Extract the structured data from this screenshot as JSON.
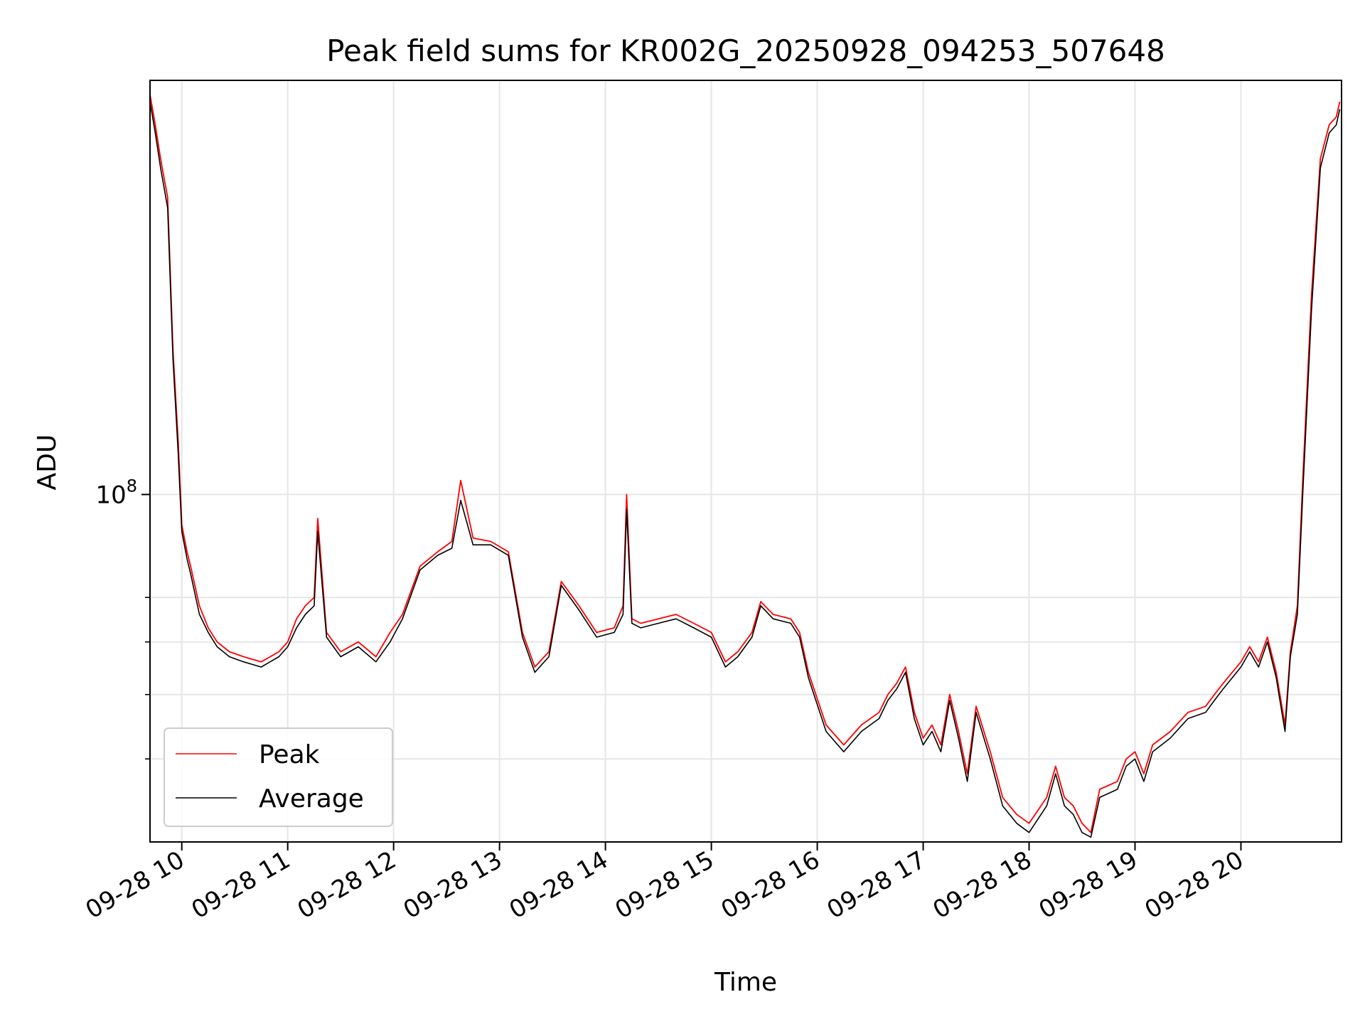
{
  "chart_data": {
    "type": "line",
    "title": "Peak field sums for KR002G_20250928_094253_507648",
    "xlabel": "Time",
    "ylabel": "ADU",
    "yscale": "log",
    "xlim": [
      "2025-09-28 09:42",
      "2025-09-28 20:57"
    ],
    "ylim": [
      30000000,
      420000000
    ],
    "x_ticks": [
      "09-28 10",
      "09-28 11",
      "09-28 12",
      "09-28 13",
      "09-28 14",
      "09-28 15",
      "09-28 16",
      "09-28 17",
      "09-28 18",
      "09-28 19",
      "09-28 20"
    ],
    "y_major_ticks": [
      {
        "value": 100000000,
        "label": "10",
        "exponent": "8"
      }
    ],
    "y_minor_ticks": [
      40000000,
      50000000,
      60000000,
      70000000
    ],
    "grid": true,
    "legend_position": "lower-left",
    "colors": {
      "peak": "#ff0000",
      "average": "#000000",
      "grid": "#e6e6e6"
    },
    "series": [
      {
        "name": "Peak",
        "color": "#ff0000",
        "x": [
          "2025-09-28 09:42",
          "2025-09-28 09:45",
          "2025-09-28 09:48",
          "2025-09-28 09:52",
          "2025-09-28 09:55",
          "2025-09-28 09:58",
          "2025-09-28 10:00",
          "2025-09-28 10:03",
          "2025-09-28 10:05",
          "2025-09-28 10:10",
          "2025-09-28 10:15",
          "2025-09-28 10:20",
          "2025-09-28 10:27",
          "2025-09-28 10:35",
          "2025-09-28 10:45",
          "2025-09-28 10:55",
          "2025-09-28 11:00",
          "2025-09-28 11:05",
          "2025-09-28 11:10",
          "2025-09-28 11:15",
          "2025-09-28 11:17",
          "2025-09-28 11:22",
          "2025-09-28 11:30",
          "2025-09-28 11:40",
          "2025-09-28 11:50",
          "2025-09-28 11:58",
          "2025-09-28 12:05",
          "2025-09-28 12:15",
          "2025-09-28 12:25",
          "2025-09-28 12:33",
          "2025-09-28 12:38",
          "2025-09-28 12:45",
          "2025-09-28 12:55",
          "2025-09-28 13:05",
          "2025-09-28 13:13",
          "2025-09-28 13:20",
          "2025-09-28 13:28",
          "2025-09-28 13:35",
          "2025-09-28 13:45",
          "2025-09-28 13:55",
          "2025-09-28 14:05",
          "2025-09-28 14:10",
          "2025-09-28 14:12",
          "2025-09-28 14:15",
          "2025-09-28 14:20",
          "2025-09-28 14:30",
          "2025-09-28 14:40",
          "2025-09-28 14:50",
          "2025-09-28 15:00",
          "2025-09-28 15:08",
          "2025-09-28 15:15",
          "2025-09-28 15:23",
          "2025-09-28 15:28",
          "2025-09-28 15:35",
          "2025-09-28 15:45",
          "2025-09-28 15:50",
          "2025-09-28 15:55",
          "2025-09-28 16:05",
          "2025-09-28 16:15",
          "2025-09-28 16:25",
          "2025-09-28 16:35",
          "2025-09-28 16:40",
          "2025-09-28 16:45",
          "2025-09-28 16:50",
          "2025-09-28 16:55",
          "2025-09-28 17:00",
          "2025-09-28 17:05",
          "2025-09-28 17:10",
          "2025-09-28 17:15",
          "2025-09-28 17:20",
          "2025-09-28 17:25",
          "2025-09-28 17:30",
          "2025-09-28 17:38",
          "2025-09-28 17:45",
          "2025-09-28 17:53",
          "2025-09-28 18:00",
          "2025-09-28 18:10",
          "2025-09-28 18:15",
          "2025-09-28 18:20",
          "2025-09-28 18:25",
          "2025-09-28 18:30",
          "2025-09-28 18:35",
          "2025-09-28 18:40",
          "2025-09-28 18:50",
          "2025-09-28 18:55",
          "2025-09-28 19:00",
          "2025-09-28 19:05",
          "2025-09-28 19:10",
          "2025-09-28 19:20",
          "2025-09-28 19:30",
          "2025-09-28 19:40",
          "2025-09-28 19:45",
          "2025-09-28 19:50",
          "2025-09-28 20:00",
          "2025-09-28 20:05",
          "2025-09-28 20:10",
          "2025-09-28 20:15",
          "2025-09-28 20:20",
          "2025-09-28 20:25",
          "2025-09-28 20:28",
          "2025-09-28 20:32",
          "2025-09-28 20:35",
          "2025-09-28 20:40",
          "2025-09-28 20:45",
          "2025-09-28 20:50",
          "2025-09-28 20:54",
          "2025-09-28 20:56"
        ],
        "values": [
          400000000,
          360000000,
          320000000,
          280000000,
          165000000,
          120000000,
          90000000,
          82000000,
          78000000,
          68000000,
          63000000,
          60000000,
          58000000,
          57000000,
          56000000,
          58000000,
          60000000,
          65000000,
          68000000,
          70000000,
          92000000,
          62000000,
          58000000,
          60000000,
          57000000,
          62000000,
          66000000,
          78000000,
          82000000,
          85000000,
          105000000,
          86000000,
          85000000,
          82000000,
          62000000,
          55000000,
          58000000,
          74000000,
          68000000,
          62000000,
          63000000,
          68000000,
          100000000,
          65000000,
          64000000,
          65000000,
          66000000,
          64000000,
          62000000,
          56000000,
          58000000,
          62000000,
          69000000,
          66000000,
          65000000,
          62000000,
          54000000,
          45000000,
          42000000,
          45000000,
          47000000,
          50000000,
          52000000,
          55000000,
          47000000,
          43000000,
          45000000,
          42000000,
          50000000,
          44000000,
          38000000,
          48000000,
          41000000,
          35000000,
          33000000,
          32000000,
          35000000,
          39000000,
          35000000,
          34000000,
          32000000,
          31000000,
          36000000,
          37000000,
          40000000,
          41000000,
          38000000,
          42000000,
          44000000,
          47000000,
          48000000,
          50000000,
          52000000,
          56000000,
          59000000,
          56000000,
          61000000,
          54000000,
          45000000,
          58000000,
          68000000,
          105000000,
          200000000,
          320000000,
          360000000,
          370000000,
          390000000
        ]
      },
      {
        "name": "Average",
        "color": "#000000",
        "x": [
          "2025-09-28 09:42",
          "2025-09-28 09:45",
          "2025-09-28 09:48",
          "2025-09-28 09:52",
          "2025-09-28 09:55",
          "2025-09-28 09:58",
          "2025-09-28 10:00",
          "2025-09-28 10:03",
          "2025-09-28 10:05",
          "2025-09-28 10:10",
          "2025-09-28 10:15",
          "2025-09-28 10:20",
          "2025-09-28 10:27",
          "2025-09-28 10:35",
          "2025-09-28 10:45",
          "2025-09-28 10:55",
          "2025-09-28 11:00",
          "2025-09-28 11:05",
          "2025-09-28 11:10",
          "2025-09-28 11:15",
          "2025-09-28 11:17",
          "2025-09-28 11:22",
          "2025-09-28 11:30",
          "2025-09-28 11:40",
          "2025-09-28 11:50",
          "2025-09-28 11:58",
          "2025-09-28 12:05",
          "2025-09-28 12:15",
          "2025-09-28 12:25",
          "2025-09-28 12:33",
          "2025-09-28 12:38",
          "2025-09-28 12:45",
          "2025-09-28 12:55",
          "2025-09-28 13:05",
          "2025-09-28 13:13",
          "2025-09-28 13:20",
          "2025-09-28 13:28",
          "2025-09-28 13:35",
          "2025-09-28 13:45",
          "2025-09-28 13:55",
          "2025-09-28 14:05",
          "2025-09-28 14:10",
          "2025-09-28 14:12",
          "2025-09-28 14:15",
          "2025-09-28 14:20",
          "2025-09-28 14:30",
          "2025-09-28 14:40",
          "2025-09-28 14:50",
          "2025-09-28 15:00",
          "2025-09-28 15:08",
          "2025-09-28 15:15",
          "2025-09-28 15:23",
          "2025-09-28 15:28",
          "2025-09-28 15:35",
          "2025-09-28 15:45",
          "2025-09-28 15:50",
          "2025-09-28 15:55",
          "2025-09-28 16:05",
          "2025-09-28 16:15",
          "2025-09-28 16:25",
          "2025-09-28 16:35",
          "2025-09-28 16:40",
          "2025-09-28 16:45",
          "2025-09-28 16:50",
          "2025-09-28 16:55",
          "2025-09-28 17:00",
          "2025-09-28 17:05",
          "2025-09-28 17:10",
          "2025-09-28 17:15",
          "2025-09-28 17:20",
          "2025-09-28 17:25",
          "2025-09-28 17:30",
          "2025-09-28 17:38",
          "2025-09-28 17:45",
          "2025-09-28 17:53",
          "2025-09-28 18:00",
          "2025-09-28 18:10",
          "2025-09-28 18:15",
          "2025-09-28 18:20",
          "2025-09-28 18:25",
          "2025-09-28 18:30",
          "2025-09-28 18:35",
          "2025-09-28 18:40",
          "2025-09-28 18:50",
          "2025-09-28 18:55",
          "2025-09-28 19:00",
          "2025-09-28 19:05",
          "2025-09-28 19:10",
          "2025-09-28 19:20",
          "2025-09-28 19:30",
          "2025-09-28 19:40",
          "2025-09-28 19:45",
          "2025-09-28 19:50",
          "2025-09-28 20:00",
          "2025-09-28 20:05",
          "2025-09-28 20:10",
          "2025-09-28 20:15",
          "2025-09-28 20:20",
          "2025-09-28 20:25",
          "2025-09-28 20:28",
          "2025-09-28 20:32",
          "2025-09-28 20:35",
          "2025-09-28 20:40",
          "2025-09-28 20:45",
          "2025-09-28 20:50",
          "2025-09-28 20:54",
          "2025-09-28 20:56"
        ],
        "values": [
          390000000,
          350000000,
          310000000,
          270000000,
          160000000,
          115000000,
          88000000,
          80000000,
          76000000,
          66000000,
          62000000,
          59000000,
          57000000,
          56000000,
          55000000,
          57000000,
          59000000,
          63000000,
          66000000,
          68000000,
          88000000,
          61000000,
          57000000,
          59000000,
          56000000,
          60000000,
          65000000,
          77000000,
          81000000,
          83000000,
          98000000,
          84000000,
          84000000,
          81000000,
          61000000,
          54000000,
          57000000,
          73000000,
          67000000,
          61000000,
          62000000,
          66000000,
          95000000,
          64000000,
          63000000,
          64000000,
          65000000,
          63000000,
          61000000,
          55000000,
          57000000,
          61000000,
          68000000,
          65000000,
          64000000,
          61000000,
          53000000,
          44000000,
          41000000,
          44000000,
          46000000,
          49000000,
          51000000,
          54000000,
          46000000,
          42000000,
          44000000,
          41000000,
          49000000,
          43000000,
          37000000,
          47000000,
          40000000,
          34000000,
          32000000,
          31000000,
          34000000,
          38000000,
          34000000,
          33000000,
          31000000,
          30500000,
          35000000,
          36000000,
          39000000,
          40000000,
          37000000,
          41000000,
          43000000,
          46000000,
          47000000,
          49000000,
          51000000,
          55000000,
          58000000,
          55000000,
          60000000,
          53000000,
          44000000,
          57000000,
          66000000,
          100000000,
          190000000,
          310000000,
          350000000,
          360000000,
          380000000
        ]
      }
    ]
  }
}
